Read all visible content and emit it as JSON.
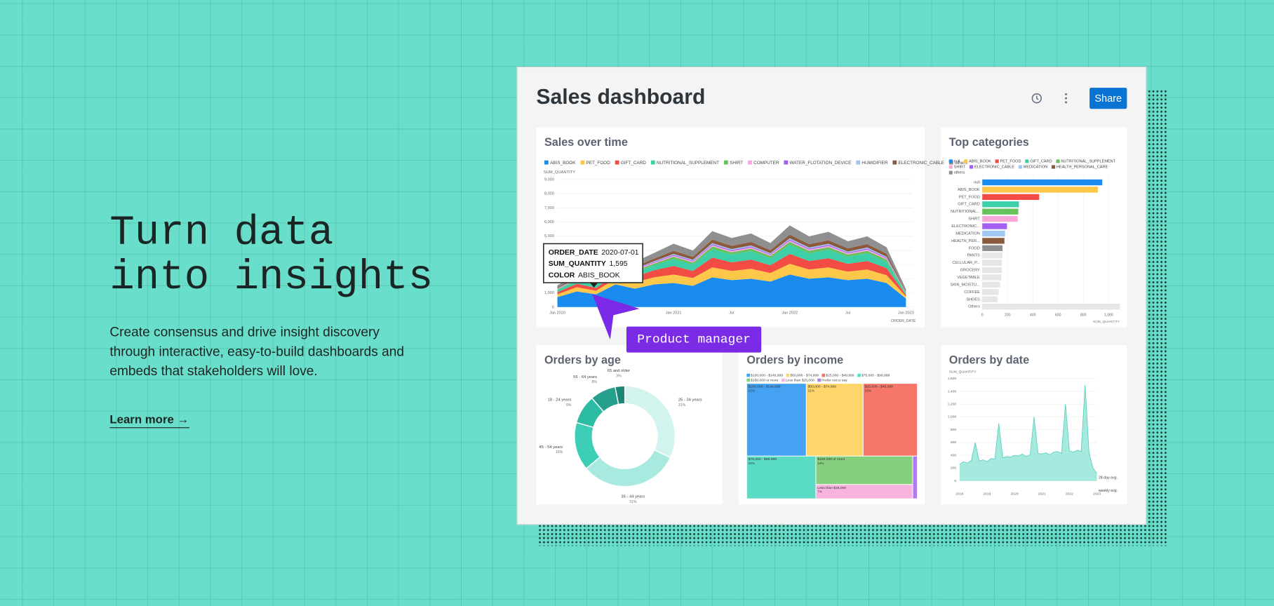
{
  "hero": {
    "headline": [
      "Turn data",
      "into insights"
    ],
    "body": [
      "Create consensus and drive insight discovery",
      "through interactive, easy-to-build dashboards and",
      "embeds that stakeholders will love."
    ],
    "link": "Learn more →"
  },
  "dashboard": {
    "title": "Sales dashboard",
    "share": "Share"
  },
  "cursor_label": "Product manager",
  "chart_data": [
    {
      "type": "stacked_area",
      "title": "Sales over time",
      "y_label": "SUM_QUANTITY",
      "x_label": "ORDER_DATE",
      "categories": [
        "Jan 2020",
        null,
        null,
        "Jul",
        null,
        null,
        "Jan 2021",
        null,
        null,
        "Jul",
        null,
        null,
        "Jan 2022",
        null,
        null,
        "Jul",
        null,
        null,
        "Jan 2023"
      ],
      "series": [
        {
          "name": "ABIS_BOOK",
          "color": "#1a8cf0",
          "values": [
            700,
            1100,
            900,
            1595,
            1300,
            1600,
            1700,
            1500,
            2100,
            1900,
            2000,
            1800,
            2300,
            2000,
            2100,
            1900,
            2000,
            1700,
            600
          ]
        },
        {
          "name": "PET_FOOD",
          "color": "#fdc84a",
          "values": [
            200,
            300,
            250,
            400,
            450,
            500,
            600,
            550,
            700,
            650,
            700,
            600,
            750,
            650,
            700,
            600,
            650,
            550,
            150
          ]
        },
        {
          "name": "GIFT_CARD",
          "color": "#f24c45",
          "values": [
            150,
            250,
            200,
            300,
            400,
            500,
            600,
            500,
            700,
            600,
            650,
            550,
            700,
            600,
            650,
            550,
            600,
            500,
            100
          ]
        },
        {
          "name": "NUTRITIONAL_SUPPLEMENT",
          "color": "#3ccfa8",
          "values": [
            150,
            200,
            200,
            250,
            300,
            350,
            500,
            450,
            600,
            550,
            600,
            500,
            650,
            550,
            600,
            500,
            550,
            450,
            100
          ]
        },
        {
          "name": "SHIRT",
          "color": "#67c25e",
          "values": [
            50,
            80,
            70,
            90,
            100,
            120,
            150,
            140,
            180,
            160,
            170,
            150,
            190,
            170,
            180,
            160,
            170,
            150,
            40
          ]
        },
        {
          "name": "COMPUTER",
          "color": "#f7a8d8",
          "values": [
            30,
            40,
            40,
            50,
            60,
            70,
            80,
            80,
            90,
            90,
            90,
            80,
            100,
            90,
            90,
            80,
            90,
            80,
            20
          ]
        },
        {
          "name": "WATER_FLOTATION_DEVICE",
          "color": "#a35ff0",
          "values": [
            20,
            30,
            30,
            40,
            40,
            50,
            60,
            60,
            70,
            70,
            70,
            60,
            80,
            70,
            70,
            60,
            70,
            60,
            20
          ]
        },
        {
          "name": "HUMIDIFIER",
          "color": "#9fc8f3",
          "values": [
            20,
            30,
            30,
            40,
            40,
            50,
            60,
            60,
            70,
            70,
            70,
            60,
            80,
            70,
            70,
            60,
            70,
            60,
            20
          ]
        },
        {
          "name": "ELECTRONIC_CABLE",
          "color": "#8b5a3c",
          "values": [
            60,
            100,
            90,
            120,
            150,
            180,
            220,
            200,
            250,
            230,
            240,
            220,
            260,
            240,
            250,
            230,
            240,
            220,
            60
          ]
        },
        {
          "name": "others",
          "color": "#8f8f8f",
          "values": [
            150,
            250,
            200,
            300,
            350,
            400,
            500,
            450,
            600,
            550,
            600,
            500,
            650,
            550,
            600,
            500,
            550,
            450,
            150
          ]
        }
      ],
      "ylim": [
        0,
        9000
      ],
      "yticks": [
        0,
        {
          "value": 1000,
          "label": "1,000"
        },
        {
          "value": 2000,
          "label": "2,000"
        },
        {
          "value": 3000,
          "label": "3,000"
        },
        {
          "value": 4000,
          "label": "4,000"
        },
        {
          "value": 5000,
          "label": "5,000"
        },
        {
          "value": 6000,
          "label": "6,000"
        },
        {
          "value": 7000,
          "label": "7,000"
        },
        {
          "value": 8000,
          "label": "8,000"
        },
        {
          "value": 9000,
          "label": "9,000"
        }
      ],
      "grid": true,
      "tooltip": [
        [
          "ORDER_DATE",
          "2020-07-01"
        ],
        [
          "SUM_QUANTITY",
          "1,595"
        ],
        [
          "COLOR",
          "ABIS_BOOK"
        ]
      ]
    },
    {
      "type": "hbar",
      "title": "Top categories",
      "x_label": "SUM_QUANTITY",
      "legend": [
        {
          "name": "null",
          "color": "#1a8cf0"
        },
        {
          "name": "ABIS_BOOK",
          "color": "#fdc84a"
        },
        {
          "name": "PET_FOOD",
          "color": "#f24c45"
        },
        {
          "name": "GIFT_CARD",
          "color": "#3ccfa8"
        },
        {
          "name": "NUTRITIONAL_SUPPLEMENT",
          "color": "#67c25e"
        },
        {
          "name": "SHIRT",
          "color": "#f7a8d8"
        },
        {
          "name": "ELECTRONIC_CABLE",
          "color": "#a35ff0"
        },
        {
          "name": "MEDICATION",
          "color": "#9fc8f3"
        },
        {
          "name": "HEALTH_PERSONAL_CARE",
          "color": "#8b5a3c"
        },
        {
          "name": "others",
          "color": "#8f8f8f"
        }
      ],
      "categories": [
        "null",
        "ABIS_BOOK",
        "PET_FOOD",
        "GIFT_CARD",
        "NUTRITIONAL...",
        "SHIRT",
        "ELECTRONIC...",
        "MEDICATION",
        "HEALTH_PER...",
        "FOOD",
        "PANTS",
        "CELLULAR_P...",
        "GROCERY",
        "VEGETABLE",
        "SKIN_MOISTU...",
        "COFFEE",
        "SHOES",
        "Others"
      ],
      "values": [
        950,
        915,
        450,
        290,
        285,
        280,
        195,
        180,
        175,
        160,
        160,
        155,
        155,
        150,
        140,
        130,
        120,
        1090
      ],
      "colors": [
        "#1a8cf0",
        "#fdc84a",
        "#f24c45",
        "#3ccfa8",
        "#67c25e",
        "#f7a8d8",
        "#a35ff0",
        "#9fc8f3",
        "#8b5a3c",
        "#8f8f8f",
        "#e6e6e6",
        "#e6e6e6",
        "#e6e6e6",
        "#e6e6e6",
        "#e6e6e6",
        "#e6e6e6",
        "#e6e6e6",
        "#e6e6e6"
      ],
      "xlim": [
        0,
        1100
      ],
      "xticks": [
        0,
        200,
        400,
        600,
        800,
        {
          "value": 1000,
          "label": "1,000"
        }
      ],
      "grid": true
    },
    {
      "type": "donut",
      "title": "Orders by age",
      "categories": [
        "25 - 34 years",
        "35 - 44 years",
        "45 - 54 years",
        "18 - 24 years",
        "55 - 64 years",
        "65 and older"
      ],
      "values": [
        31,
        31,
        15,
        9,
        8,
        3
      ],
      "value_labels": [
        "31%",
        "31%",
        "15%",
        "9%",
        "8%",
        "3%"
      ],
      "colors": [
        "#d3f3ee",
        "#a8eadf",
        "#3ccfb5",
        "#2cbba3",
        "#25a08c",
        "#1b8676"
      ]
    },
    {
      "type": "treemap",
      "title": "Orders by income",
      "categories": [
        "$100,000 - $149,999",
        "$50,000 - $74,999",
        "$25,000 - $49,999",
        "$75,000 - $99,999",
        "$150,000 or more",
        "Less than $25,000",
        "Prefer not to say"
      ],
      "values": [
        22,
        21,
        20,
        15,
        14,
        7,
        1
      ],
      "value_labels": [
        "22%",
        "21%",
        "20%",
        "15%",
        "14%",
        "7%",
        "1%"
      ],
      "colors": [
        "#45a1f2",
        "#fdd56a",
        "#f6766a",
        "#5adcc4",
        "#86cf7f",
        "#f9b3df",
        "#b07af2"
      ]
    },
    {
      "type": "area",
      "title": "Orders by date",
      "y_label": "SUM_QUANTITY",
      "color": "#a6e9de",
      "categories": [
        "2018",
        null,
        null,
        null,
        null,
        null,
        null,
        "2019",
        null,
        null,
        null,
        null,
        null,
        null,
        "2020",
        null,
        null,
        null,
        null,
        null,
        null,
        "2021",
        null,
        null,
        null,
        null,
        null,
        null,
        "2022",
        null,
        null,
        null,
        null,
        null,
        null,
        "2023"
      ],
      "values": [
        260,
        300,
        280,
        320,
        600,
        310,
        330,
        300,
        350,
        340,
        900,
        360,
        380,
        370,
        400,
        390,
        420,
        380,
        410,
        1000,
        430,
        420,
        440,
        410,
        450,
        460,
        430,
        1200,
        470,
        450,
        480,
        460,
        1500,
        440,
        200,
        120
      ],
      "ylim": [
        0,
        1600
      ],
      "yticks": [
        0,
        200,
        400,
        600,
        800,
        {
          "value": 1000,
          "label": "1,000"
        },
        {
          "value": 1200,
          "label": "1,200"
        },
        {
          "value": 1400,
          "label": "1,400"
        },
        {
          "value": 1600,
          "label": "1,600"
        }
      ],
      "grid": true,
      "annotations": [
        "28-day avg.",
        "weekly avg."
      ]
    }
  ]
}
